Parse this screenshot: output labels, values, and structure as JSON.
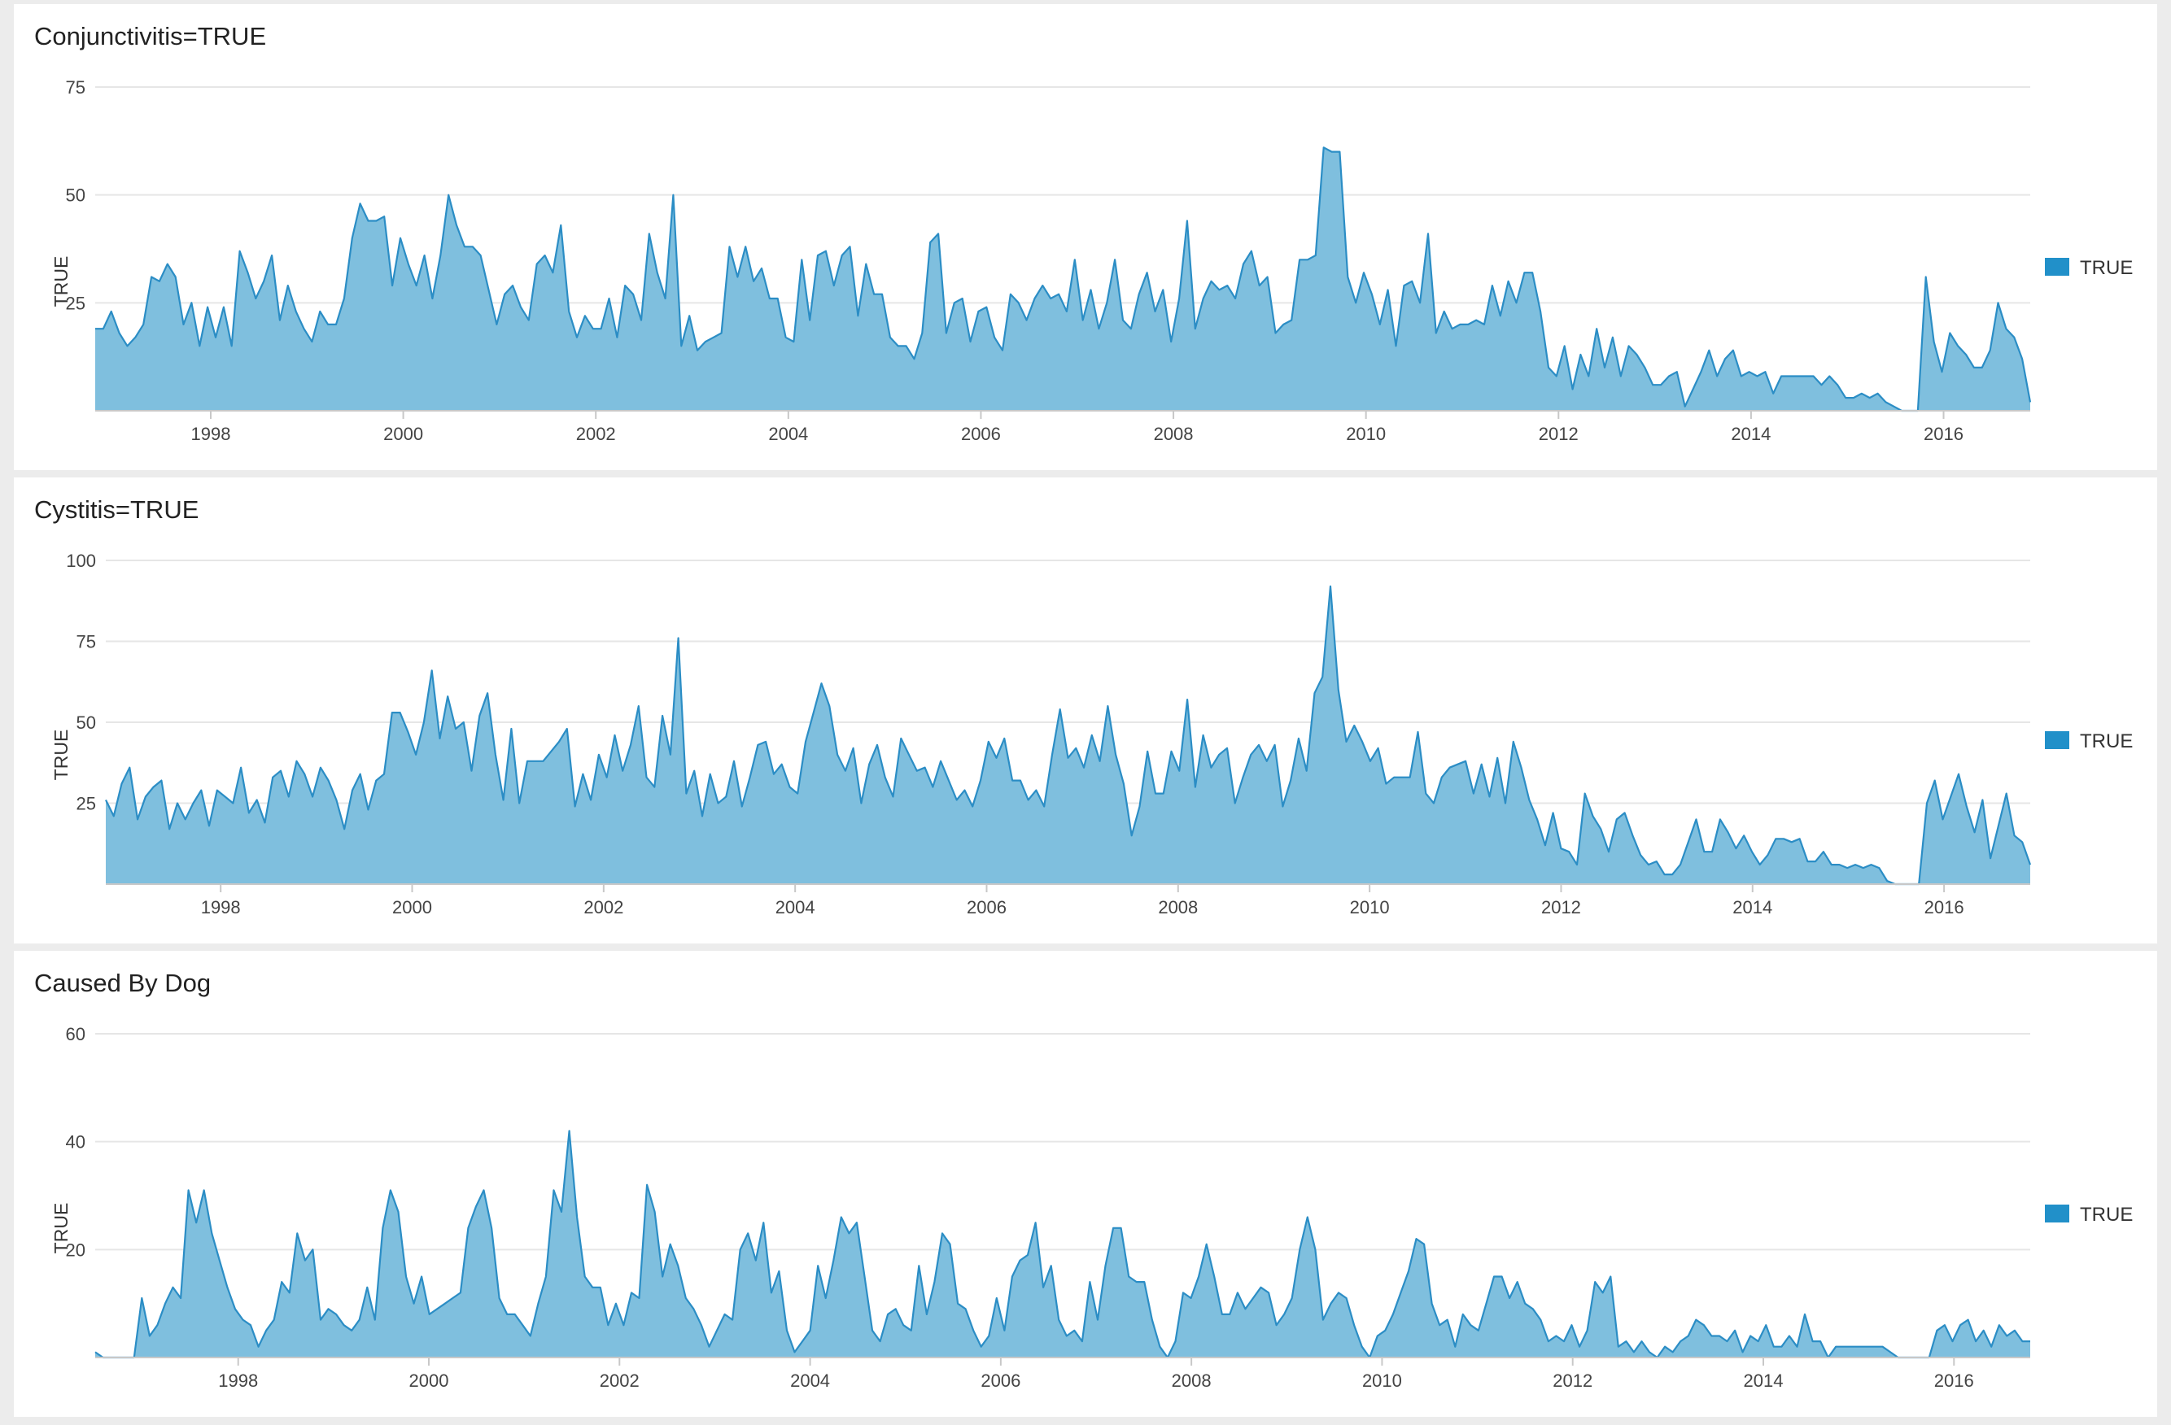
{
  "colors": {
    "area_fill": "#7fbfde",
    "area_line": "#2b8dc5",
    "legend_swatch": "#2190c9",
    "grid": "#e6e6e6",
    "axis": "#c8c8c8"
  },
  "chart_data": [
    {
      "type": "area",
      "title": "Conjunctivitis=TRUE",
      "ylabel": "TRUE",
      "legend": "TRUE",
      "legend_position": "right",
      "grid": true,
      "x_start": 1996.8,
      "x_end": 2016.9,
      "ylim": [
        0,
        75
      ],
      "y_ticks": [
        25,
        50,
        75
      ],
      "x_ticks": [
        1998,
        2000,
        2002,
        2004,
        2006,
        2008,
        2010,
        2012,
        2014,
        2016
      ],
      "values": [
        19,
        19,
        23,
        18,
        15,
        17,
        20,
        31,
        30,
        34,
        31,
        20,
        25,
        15,
        24,
        17,
        24,
        15,
        37,
        32,
        26,
        30,
        36,
        21,
        29,
        23,
        19,
        16,
        23,
        20,
        20,
        26,
        40,
        48,
        44,
        44,
        45,
        29,
        40,
        34,
        29,
        36,
        26,
        36,
        50,
        43,
        38,
        38,
        36,
        28,
        20,
        27,
        29,
        24,
        21,
        34,
        36,
        32,
        43,
        23,
        17,
        22,
        19,
        19,
        26,
        17,
        29,
        27,
        21,
        41,
        32,
        26,
        50,
        15,
        22,
        14,
        16,
        17,
        18,
        38,
        31,
        38,
        30,
        33,
        26,
        26,
        17,
        16,
        35,
        21,
        36,
        37,
        29,
        36,
        38,
        22,
        34,
        27,
        27,
        17,
        15,
        15,
        12,
        18,
        39,
        41,
        18,
        25,
        26,
        16,
        23,
        24,
        17,
        14,
        27,
        25,
        21,
        26,
        29,
        26,
        27,
        23,
        35,
        21,
        28,
        19,
        25,
        35,
        21,
        19,
        27,
        32,
        23,
        28,
        16,
        26,
        44,
        19,
        26,
        30,
        28,
        29,
        26,
        34,
        37,
        29,
        31,
        18,
        20,
        21,
        35,
        35,
        36,
        61,
        60,
        60,
        31,
        25,
        32,
        27,
        20,
        28,
        15,
        29,
        30,
        25,
        41,
        18,
        23,
        19,
        20,
        20,
        21,
        20,
        29,
        22,
        30,
        25,
        32,
        32,
        23,
        10,
        8,
        15,
        5,
        13,
        8,
        19,
        10,
        17,
        8,
        15,
        13,
        10,
        6,
        6,
        8,
        9,
        1,
        5,
        9,
        14,
        8,
        12,
        14,
        8,
        9,
        8,
        9,
        4,
        8,
        8,
        8,
        8,
        8,
        6,
        8,
        6,
        3,
        3,
        4,
        3,
        4,
        2,
        1,
        0,
        0,
        0,
        31,
        16,
        9,
        18,
        15,
        13,
        10,
        10,
        14,
        25,
        19,
        17,
        12,
        2
      ]
    },
    {
      "type": "area",
      "title": "Cystitis=TRUE",
      "ylabel": "TRUE",
      "legend": "TRUE",
      "legend_position": "right",
      "grid": true,
      "x_start": 1996.8,
      "x_end": 2016.9,
      "ylim": [
        0,
        100
      ],
      "y_ticks": [
        25,
        50,
        75,
        100
      ],
      "x_ticks": [
        1998,
        2000,
        2002,
        2004,
        2006,
        2008,
        2010,
        2012,
        2014,
        2016
      ],
      "values": [
        26,
        21,
        31,
        36,
        20,
        27,
        30,
        32,
        17,
        25,
        20,
        25,
        29,
        18,
        29,
        27,
        25,
        36,
        22,
        26,
        19,
        33,
        35,
        27,
        38,
        34,
        27,
        36,
        32,
        26,
        17,
        29,
        34,
        23,
        32,
        34,
        53,
        53,
        47,
        40,
        50,
        66,
        45,
        58,
        48,
        50,
        35,
        52,
        59,
        40,
        26,
        48,
        25,
        38,
        38,
        38,
        41,
        44,
        48,
        24,
        34,
        26,
        40,
        33,
        46,
        35,
        43,
        55,
        33,
        30,
        52,
        40,
        76,
        28,
        35,
        21,
        34,
        25,
        27,
        38,
        24,
        33,
        43,
        44,
        34,
        37,
        30,
        28,
        44,
        53,
        62,
        55,
        40,
        35,
        42,
        25,
        37,
        43,
        33,
        27,
        45,
        40,
        35,
        36,
        30,
        38,
        32,
        26,
        29,
        24,
        32,
        44,
        39,
        45,
        32,
        32,
        26,
        29,
        24,
        40,
        54,
        39,
        42,
        36,
        46,
        38,
        55,
        40,
        31,
        15,
        24,
        41,
        28,
        28,
        41,
        35,
        57,
        30,
        46,
        36,
        40,
        42,
        25,
        33,
        40,
        43,
        38,
        43,
        24,
        32,
        45,
        35,
        59,
        64,
        92,
        60,
        44,
        49,
        44,
        38,
        42,
        31,
        33,
        33,
        33,
        47,
        28,
        25,
        33,
        36,
        37,
        38,
        28,
        37,
        27,
        39,
        25,
        44,
        36,
        26,
        20,
        12,
        22,
        11,
        10,
        6,
        28,
        21,
        17,
        10,
        20,
        22,
        15,
        9,
        6,
        7,
        3,
        3,
        6,
        13,
        20,
        10,
        10,
        20,
        16,
        11,
        15,
        10,
        6,
        9,
        14,
        14,
        13,
        14,
        7,
        7,
        10,
        6,
        6,
        5,
        6,
        5,
        6,
        5,
        1,
        0,
        0,
        0,
        0,
        25,
        32,
        20,
        27,
        34,
        24,
        16,
        26,
        8,
        18,
        28,
        15,
        13,
        6
      ]
    },
    {
      "type": "area",
      "title": "Caused By Dog",
      "ylabel": "TRUE",
      "legend": "TRUE",
      "legend_position": "right",
      "grid": true,
      "x_start": 1996.5,
      "x_end": 2016.8,
      "ylim": [
        0,
        60
      ],
      "y_ticks": [
        20,
        40,
        60
      ],
      "x_ticks": [
        1998,
        2000,
        2002,
        2004,
        2006,
        2008,
        2010,
        2012,
        2014,
        2016
      ],
      "values": [
        1,
        0,
        0,
        0,
        0,
        0,
        11,
        4,
        6,
        10,
        13,
        11,
        31,
        25,
        31,
        23,
        18,
        13,
        9,
        7,
        6,
        2,
        5,
        7,
        14,
        12,
        23,
        18,
        20,
        7,
        9,
        8,
        6,
        5,
        7,
        13,
        7,
        24,
        31,
        27,
        15,
        10,
        15,
        8,
        9,
        10,
        11,
        12,
        24,
        28,
        31,
        24,
        11,
        8,
        8,
        6,
        4,
        10,
        15,
        31,
        27,
        42,
        26,
        15,
        13,
        13,
        6,
        10,
        6,
        12,
        11,
        32,
        27,
        15,
        21,
        17,
        11,
        9,
        6,
        2,
        5,
        8,
        7,
        20,
        23,
        18,
        25,
        12,
        16,
        5,
        1,
        3,
        5,
        17,
        11,
        18,
        26,
        23,
        25,
        15,
        5,
        3,
        8,
        9,
        6,
        5,
        17,
        8,
        14,
        23,
        21,
        10,
        9,
        5,
        2,
        4,
        11,
        5,
        15,
        18,
        19,
        25,
        13,
        17,
        7,
        4,
        5,
        3,
        14,
        7,
        17,
        24,
        24,
        15,
        14,
        14,
        7,
        2,
        0,
        3,
        12,
        11,
        15,
        21,
        15,
        8,
        8,
        12,
        9,
        11,
        13,
        12,
        6,
        8,
        11,
        20,
        26,
        20,
        7,
        10,
        12,
        11,
        6,
        2,
        0,
        4,
        5,
        8,
        12,
        16,
        22,
        21,
        10,
        6,
        7,
        2,
        8,
        6,
        5,
        10,
        15,
        15,
        11,
        14,
        10,
        9,
        7,
        3,
        4,
        3,
        6,
        2,
        5,
        14,
        12,
        15,
        2,
        3,
        1,
        3,
        1,
        0,
        2,
        1,
        3,
        4,
        7,
        6,
        4,
        4,
        3,
        5,
        1,
        4,
        3,
        6,
        2,
        2,
        4,
        2,
        8,
        3,
        3,
        0,
        2,
        2,
        2,
        2,
        2,
        2,
        2,
        1,
        0,
        0,
        0,
        0,
        0,
        5,
        6,
        3,
        6,
        7,
        3,
        5,
        2,
        6,
        4,
        5,
        3,
        3
      ]
    }
  ]
}
